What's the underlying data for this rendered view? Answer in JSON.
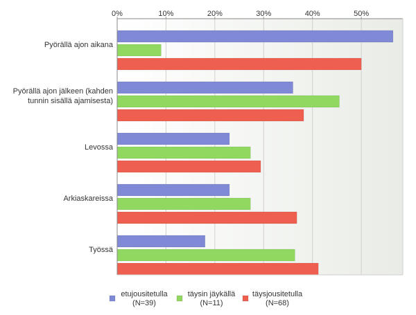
{
  "chart_data": {
    "type": "bar",
    "orientation": "horizontal",
    "categories": [
      [
        "Pyörällä ajon aikana"
      ],
      [
        "Pyörällä ajon jälkeen (kahden",
        "tunnin sisällä ajamisesta)"
      ],
      [
        "Levossa"
      ],
      [
        "Arkiaskareissa"
      ],
      [
        "Työssä"
      ]
    ],
    "series": [
      {
        "name": [
          "etujousitetulla",
          "(N=39)"
        ],
        "color": "#7f89d6",
        "values": [
          56.5,
          36,
          23,
          23,
          18
        ]
      },
      {
        "name": [
          "täysin jäykällä",
          "(N=11)"
        ],
        "color": "#90d860",
        "values": [
          9,
          45.5,
          27.3,
          27.3,
          36.4
        ]
      },
      {
        "name": [
          "täysjousitetulla",
          "(N=68)"
        ],
        "color": "#ef5f4f",
        "values": [
          50,
          38.2,
          29.4,
          36.8,
          41.2
        ]
      }
    ],
    "x_ticks": [
      "0%",
      "10%",
      "20%",
      "30%",
      "40%",
      "50%"
    ],
    "x_tick_values": [
      0,
      10,
      20,
      30,
      40,
      50
    ],
    "xlim": [
      0,
      58.5
    ],
    "grid": true,
    "legend_position": "bottom",
    "title": "",
    "xlabel": "",
    "ylabel": ""
  }
}
